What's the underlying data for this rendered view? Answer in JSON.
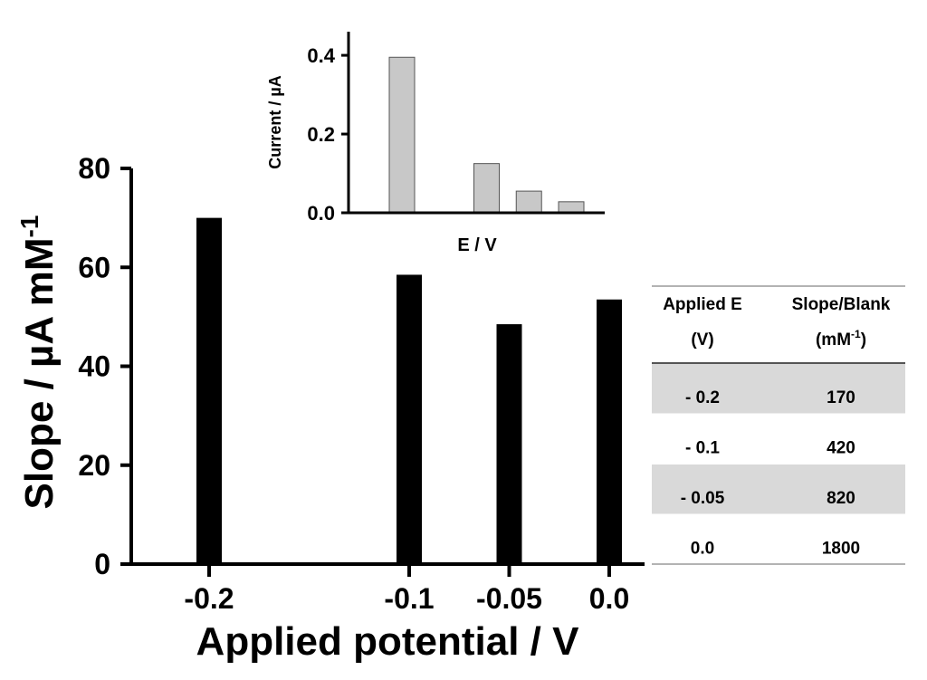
{
  "chart_data": [
    {
      "id": "main",
      "type": "bar",
      "categories": [
        "-0.2",
        "-0.1",
        "-0.05",
        "0.0"
      ],
      "x": [
        -0.2,
        -0.1,
        -0.05,
        0.0
      ],
      "values": [
        70,
        58.5,
        48.5,
        53.5
      ],
      "xlabel": "Applied potential / V",
      "ylabel": "Slope / µA mM",
      "ylabel_superscript": "-1",
      "yticks": [
        "0",
        "20",
        "40",
        "60",
        "80"
      ],
      "ylim": [
        0,
        80
      ],
      "grid": false,
      "bar_color": "#000000"
    },
    {
      "id": "inset",
      "type": "bar",
      "x": [
        -0.2,
        -0.1,
        -0.05,
        0.0
      ],
      "values": [
        0.395,
        0.125,
        0.055,
        0.028
      ],
      "xlabel": "E / V",
      "ylabel": "Current / µA",
      "yticks": [
        "0.0",
        "0.2",
        "0.4"
      ],
      "ylim": [
        0,
        0.46
      ],
      "grid": false,
      "bar_color": "#c8c8c8"
    }
  ],
  "table": {
    "headers": [
      {
        "line1": "Applied E",
        "line2": "(V)",
        "sup": ""
      },
      {
        "line1": "Slope/Blank",
        "line2": "(mM",
        "sup": "-1",
        "tail": ")"
      }
    ],
    "rows": [
      {
        "e": "- 0.2",
        "ratio": "170",
        "shaded": true
      },
      {
        "e": "- 0.1",
        "ratio": "420",
        "shaded": false
      },
      {
        "e": "- 0.05",
        "ratio": "820",
        "shaded": true
      },
      {
        "e": "0.0",
        "ratio": "1800",
        "shaded": false
      }
    ],
    "shade_color": "#d9d9d9"
  }
}
